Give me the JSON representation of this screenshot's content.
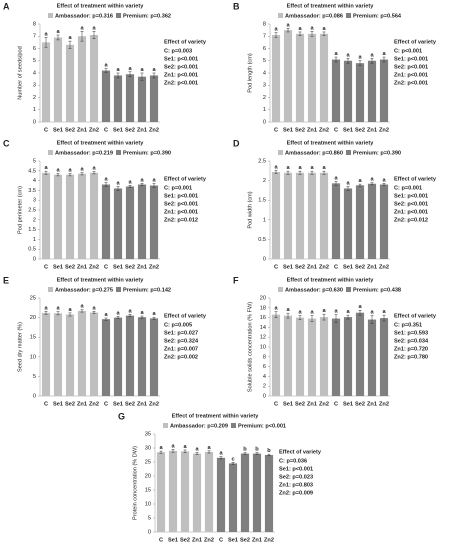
{
  "chart_data": [
    {
      "type": "bar",
      "panel": "A",
      "title": "Effect of treatment within variety",
      "y_label": "Number of seeds/pod",
      "categories": [
        "C",
        "Se1",
        "Se2",
        "Zn1",
        "Zn2"
      ],
      "ylim": [
        0,
        8
      ],
      "yticks": [
        0,
        1,
        2,
        3,
        4,
        5,
        6,
        7,
        8
      ],
      "series": [
        {
          "name": "Ambassador: p=0.316",
          "color": "#bfbfbf",
          "values": [
            6.5,
            6.9,
            6.3,
            7.0,
            7.1
          ],
          "errors": [
            0.4,
            0.2,
            0.3,
            0.4,
            0.3
          ],
          "letters": [
            "a",
            "a",
            "a",
            "a",
            "a"
          ]
        },
        {
          "name": "Premium: p=0.362",
          "color": "#7f7f7f",
          "values": [
            4.2,
            3.8,
            3.9,
            3.7,
            3.8
          ],
          "errors": [
            0.15,
            0.2,
            0.2,
            0.3,
            0.2
          ],
          "letters": [
            "a",
            "a",
            "a",
            "a",
            "a"
          ]
        }
      ],
      "variety_title": "Effect of variety",
      "variety_effects": [
        "C:  p=0.003",
        "Se1: p<0.001",
        "Se2: p<0.001",
        "Zn1: p<0.001",
        "Zn2: p<0.001"
      ]
    },
    {
      "type": "bar",
      "panel": "B",
      "title": "Effect of treatment within variety",
      "y_label": "Pod length (cm)",
      "categories": [
        "C",
        "Se1",
        "Se2",
        "Zn1",
        "Zn2"
      ],
      "ylim": [
        0,
        8
      ],
      "yticks": [
        0,
        1,
        2,
        3,
        4,
        5,
        6,
        7,
        8
      ],
      "series": [
        {
          "name": "Ambassador: p=0.086",
          "color": "#bfbfbf",
          "values": [
            7.1,
            7.5,
            7.2,
            7.2,
            7.2
          ],
          "errors": [
            0.2,
            0.15,
            0.15,
            0.2,
            0.15
          ],
          "letters": [
            "a",
            "a",
            "a",
            "a",
            "a"
          ]
        },
        {
          "name": "Premium: p=0.564",
          "color": "#7f7f7f",
          "values": [
            5.1,
            5.0,
            4.8,
            5.0,
            5.1
          ],
          "errors": [
            0.2,
            0.2,
            0.2,
            0.2,
            0.2
          ],
          "letters": [
            "a",
            "a",
            "a",
            "a",
            "a"
          ]
        }
      ],
      "variety_title": "Effect of variety",
      "variety_effects": [
        "C:  p<0.001",
        "Se1: p<0.001",
        "Se2: p<0.001",
        "Zn1: p<0.001",
        "Zn2: p<0.001"
      ]
    },
    {
      "type": "bar",
      "panel": "C",
      "title": "Effect of treatment within variety",
      "y_label": "Pod perimeter (cm)",
      "categories": [
        "C",
        "Se1",
        "Se2",
        "Zn1",
        "Zn2"
      ],
      "ylim": [
        0,
        5
      ],
      "yticks": [
        0,
        0.5,
        1,
        1.5,
        2,
        2.5,
        3,
        3.5,
        4,
        4.5,
        5
      ],
      "series": [
        {
          "name": "Ambassador: p=0.219",
          "color": "#bfbfbf",
          "values": [
            4.4,
            4.3,
            4.3,
            4.35,
            4.4
          ],
          "errors": [
            0.08,
            0.06,
            0.06,
            0.06,
            0.06
          ],
          "letters": [
            "a",
            "a",
            "a",
            "a",
            "a"
          ]
        },
        {
          "name": "Premium: p=0.390",
          "color": "#7f7f7f",
          "values": [
            3.8,
            3.6,
            3.7,
            3.8,
            3.75
          ],
          "errors": [
            0.1,
            0.1,
            0.06,
            0.06,
            0.1
          ],
          "letters": [
            "a",
            "a",
            "a",
            "a",
            "a"
          ]
        }
      ],
      "variety_title": "Effect of variety",
      "variety_effects": [
        "C:  p=0.001",
        "Se1: p<0.001",
        "Se2: p<0.001",
        "Zn1: p<0.001",
        "Zn2: p=0.012"
      ]
    },
    {
      "type": "bar",
      "panel": "D",
      "title": "Effect of treatment within variety",
      "y_label": "Pod width (cm)",
      "categories": [
        "C",
        "Se1",
        "Se2",
        "Zn1",
        "Zn2"
      ],
      "ylim": [
        0,
        2.5
      ],
      "yticks": [
        0,
        0.5,
        1,
        1.5,
        2,
        2.5
      ],
      "series": [
        {
          "name": "Ambassador: p=0.860",
          "color": "#bfbfbf",
          "values": [
            2.22,
            2.2,
            2.2,
            2.2,
            2.2
          ],
          "errors": [
            0.04,
            0.04,
            0.04,
            0.04,
            0.04
          ],
          "letters": [
            "a",
            "a",
            "a",
            "a",
            "a"
          ]
        },
        {
          "name": "Premium: p=0.390",
          "color": "#7f7f7f",
          "values": [
            1.93,
            1.8,
            1.88,
            1.92,
            1.9
          ],
          "errors": [
            0.05,
            0.05,
            0.03,
            0.03,
            0.03
          ],
          "letters": [
            "a",
            "a",
            "a",
            "a",
            "a"
          ]
        }
      ],
      "variety_title": "Effect of variety",
      "variety_effects": [
        "C:  p=0.001",
        "Se1: p<0.001",
        "Se2: p<0.001",
        "Zn1: p<0.001",
        "Zn2: p=0.012"
      ]
    },
    {
      "type": "bar",
      "panel": "E",
      "title": "Effect of treatment within variety",
      "y_label": "Seed dry matter (%)",
      "categories": [
        "C",
        "Se1",
        "Se2",
        "Zn1",
        "Zn2"
      ],
      "ylim": [
        0,
        25
      ],
      "yticks": [
        0,
        5,
        10,
        15,
        20,
        25
      ],
      "series": [
        {
          "name": "Ambassador: p=0.275",
          "color": "#bfbfbf",
          "values": [
            21.2,
            21.1,
            20.8,
            21.7,
            21.3
          ],
          "errors": [
            0.4,
            0.4,
            0.4,
            0.3,
            0.3
          ],
          "letters": [
            "a",
            "a",
            "a",
            "a",
            "a"
          ]
        },
        {
          "name": "Premium: p=0.142",
          "color": "#7f7f7f",
          "values": [
            19.6,
            20.0,
            20.5,
            20.1,
            19.8
          ],
          "errors": [
            0.3,
            0.3,
            0.3,
            0.3,
            0.3
          ],
          "letters": [
            "a",
            "a",
            "a",
            "a",
            "a"
          ]
        }
      ],
      "variety_title": "Effect of variety",
      "variety_effects": [
        "C:  p=0.005",
        "Se1: p=0.027",
        "Se2: p=0.324",
        "Zn1: p=0.007",
        "Zn2: p=0.002"
      ]
    },
    {
      "type": "bar",
      "panel": "F",
      "title": "Effect of treatment within variety",
      "y_label": "Soluble solids concentration (% FW)",
      "categories": [
        "C",
        "Se1",
        "Se2",
        "Zn1",
        "Zn2"
      ],
      "ylim": [
        0,
        20
      ],
      "yticks": [
        0,
        2,
        4,
        6,
        8,
        10,
        12,
        14,
        16,
        18,
        20
      ],
      "series": [
        {
          "name": "Ambassador: p=0.630",
          "color": "#bfbfbf",
          "values": [
            16.6,
            16.4,
            16.0,
            15.8,
            16.1
          ],
          "errors": [
            0.6,
            0.5,
            0.4,
            0.6,
            0.6
          ],
          "letters": [
            "a",
            "a",
            "a",
            "a",
            "a"
          ]
        },
        {
          "name": "Premium: p=0.438",
          "color": "#7f7f7f",
          "values": [
            15.8,
            16.1,
            17.0,
            15.6,
            15.9
          ],
          "errors": [
            0.8,
            0.4,
            0.5,
            0.8,
            0.6
          ],
          "letters": [
            "a",
            "a",
            "a",
            "a",
            "a"
          ]
        }
      ],
      "variety_title": "Effect of variety",
      "variety_effects": [
        "C:  p=0.351",
        "Se1: p=0.593",
        "Se2: p=0.034",
        "Zn1: p=0.720",
        "Zn2: p=0.780"
      ]
    },
    {
      "type": "bar",
      "panel": "G",
      "title": "Effect of treatment within variety",
      "y_label": "Protein concentration (% DW)",
      "categories": [
        "C",
        "Se1",
        "Se2",
        "Zn1",
        "Zn2"
      ],
      "ylim": [
        0,
        35
      ],
      "yticks": [
        0,
        5,
        10,
        15,
        20,
        25,
        30,
        35
      ],
      "series": [
        {
          "name": "Ambassador: p=0.209",
          "color": "#bfbfbf",
          "values": [
            28.5,
            29.0,
            28.8,
            28.0,
            28.6
          ],
          "errors": [
            0.4,
            0.5,
            0.5,
            0.4,
            0.4
          ],
          "letters": [
            "a",
            "a",
            "a",
            "a",
            "a"
          ]
        },
        {
          "name": "Premium: p<0.001",
          "color": "#7f7f7f",
          "values": [
            26.5,
            24.5,
            28.0,
            28.0,
            27.5
          ],
          "errors": [
            0.4,
            0.4,
            0.3,
            0.3,
            0.3
          ],
          "letters": [
            "a",
            "c",
            "b",
            "b",
            "b"
          ]
        }
      ],
      "variety_title": "Effect of variety",
      "variety_effects": [
        "C:  p=0.036",
        "Se1: p<0.001",
        "Se2: p=0.023",
        "Zn1: p=0.803",
        "Zn2: p=0.009"
      ]
    }
  ]
}
